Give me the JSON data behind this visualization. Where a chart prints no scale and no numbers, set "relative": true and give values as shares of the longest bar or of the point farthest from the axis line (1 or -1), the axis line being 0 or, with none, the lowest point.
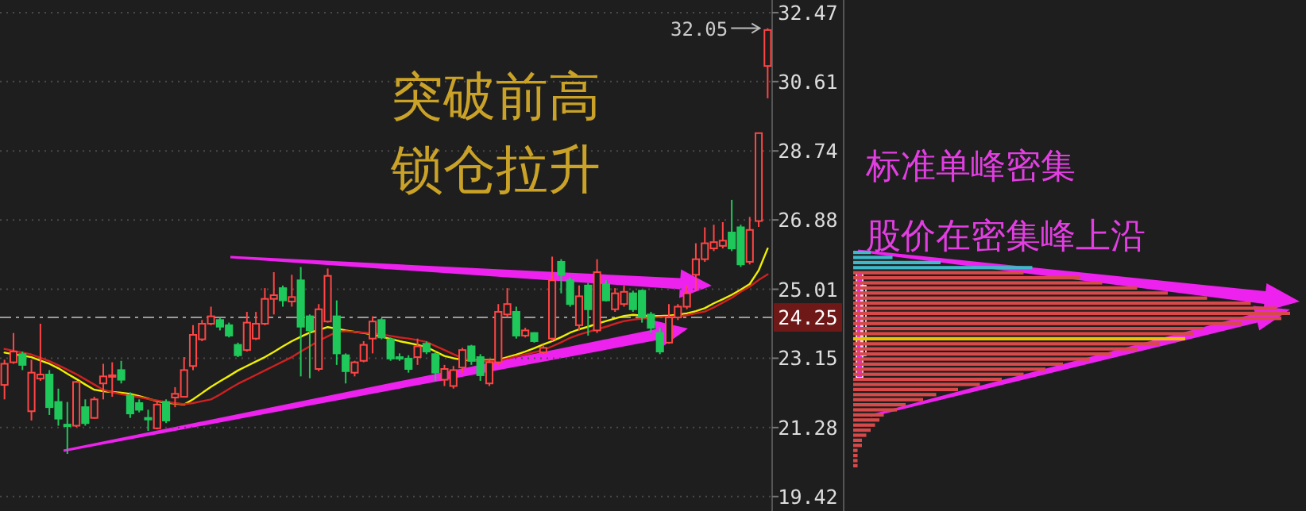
{
  "chart_data": [
    {
      "type": "candlestick",
      "categories": [
        null,
        null,
        null,
        null,
        null,
        null,
        null,
        null,
        null,
        null,
        null,
        null,
        null,
        null,
        null,
        null,
        null,
        null,
        null,
        null,
        null,
        null,
        null,
        null,
        null,
        null,
        null,
        null,
        null,
        null,
        null,
        null,
        null,
        null,
        null,
        null,
        null,
        null,
        null,
        null,
        null,
        null,
        null,
        null,
        null,
        null,
        null,
        null,
        null,
        null,
        null,
        null,
        null,
        null,
        null,
        null,
        null,
        null,
        null,
        null,
        null,
        null,
        null,
        null,
        null,
        null,
        null,
        null,
        null,
        null,
        null,
        null,
        null,
        null,
        null,
        null,
        null,
        null,
        null,
        null,
        null,
        null,
        null,
        null,
        null,
        null
      ],
      "ohlc": [
        [
          22.43,
          23.11,
          22.04,
          23.0
        ],
        [
          23.04,
          23.83,
          23.0,
          23.33
        ],
        [
          23.26,
          23.33,
          22.83,
          22.97
        ],
        [
          21.72,
          23.11,
          21.47,
          22.76
        ],
        [
          22.6,
          24.08,
          22.54,
          22.71
        ],
        [
          22.71,
          22.83,
          21.62,
          21.83
        ],
        [
          21.97,
          22.33,
          21.33,
          21.52
        ],
        [
          21.36,
          21.97,
          20.57,
          21.32
        ],
        [
          21.33,
          22.54,
          21.29,
          22.51
        ],
        [
          21.83,
          22.04,
          21.33,
          21.4
        ],
        [
          21.54,
          22.11,
          21.52,
          22.04
        ],
        [
          22.47,
          23.0,
          22.04,
          22.66
        ],
        [
          22.66,
          23.04,
          22.11,
          22.69
        ],
        [
          22.83,
          23.08,
          22.47,
          22.57
        ],
        [
          22.14,
          22.23,
          21.54,
          21.66
        ],
        [
          21.94,
          22.04,
          21.69,
          21.76
        ],
        [
          21.54,
          21.76,
          21.19,
          21.52
        ],
        [
          21.26,
          22.0,
          21.23,
          21.9
        ],
        [
          21.97,
          22.04,
          21.4,
          21.47
        ],
        [
          22.09,
          22.37,
          21.83,
          22.19
        ],
        [
          22.11,
          23.18,
          22.09,
          22.83
        ],
        [
          22.94,
          24.04,
          22.83,
          23.78
        ],
        [
          23.66,
          24.18,
          23.61,
          24.08
        ],
        [
          24.08,
          24.54,
          24.04,
          24.28
        ],
        [
          24.18,
          24.25,
          23.9,
          24.0
        ],
        [
          24.04,
          24.11,
          23.71,
          23.76
        ],
        [
          23.51,
          23.57,
          23.18,
          23.23
        ],
        [
          23.37,
          24.4,
          23.33,
          24.11
        ],
        [
          23.68,
          24.4,
          23.64,
          24.08
        ],
        [
          24.08,
          25.04,
          24.04,
          24.75
        ],
        [
          24.75,
          25.47,
          24.33,
          24.85
        ],
        [
          25.04,
          25.11,
          24.54,
          24.71
        ],
        [
          24.68,
          25.4,
          24.54,
          24.8
        ],
        [
          25.25,
          25.61,
          22.66,
          24.0
        ],
        [
          24.28,
          24.33,
          22.61,
          23.9
        ],
        [
          22.86,
          24.61,
          22.8,
          24.47
        ],
        [
          24.14,
          25.57,
          24.11,
          25.37
        ],
        [
          24.28,
          24.71,
          22.97,
          23.28
        ],
        [
          23.23,
          23.28,
          22.47,
          22.8
        ],
        [
          22.76,
          23.08,
          22.66,
          23.04
        ],
        [
          23.08,
          23.61,
          23.04,
          23.51
        ],
        [
          23.68,
          24.28,
          23.28,
          24.14
        ],
        [
          24.18,
          24.23,
          23.66,
          23.71
        ],
        [
          23.66,
          23.71,
          23.08,
          23.14
        ],
        [
          23.18,
          23.28,
          23.08,
          23.14
        ],
        [
          23.14,
          23.23,
          22.76,
          22.86
        ],
        [
          23.18,
          23.68,
          22.97,
          23.47
        ],
        [
          23.54,
          23.6,
          23.26,
          23.33
        ],
        [
          23.26,
          23.33,
          22.54,
          22.76
        ],
        [
          22.57,
          22.97,
          22.4,
          22.86
        ],
        [
          22.4,
          22.94,
          22.33,
          22.83
        ],
        [
          22.9,
          23.43,
          22.76,
          23.37
        ],
        [
          23.47,
          23.51,
          22.97,
          23.08
        ],
        [
          23.18,
          23.26,
          22.54,
          22.69
        ],
        [
          22.47,
          23.14,
          22.4,
          23.04
        ],
        [
          23.04,
          24.61,
          22.97,
          24.4
        ],
        [
          24.33,
          25.04,
          24.25,
          24.61
        ],
        [
          24.4,
          24.54,
          23.68,
          23.76
        ],
        [
          23.76,
          23.97,
          23.71,
          23.9
        ],
        [
          23.83,
          23.85,
          23.57,
          23.61
        ],
        [
          23.31,
          23.51,
          23.26,
          23.43
        ],
        [
          23.68,
          25.89,
          23.61,
          25.25
        ],
        [
          25.75,
          25.82,
          24.9,
          25.4
        ],
        [
          25.25,
          25.32,
          24.54,
          24.61
        ],
        [
          24.04,
          25.11,
          23.9,
          24.82
        ],
        [
          25.11,
          25.18,
          23.76,
          24.47
        ],
        [
          23.9,
          25.82,
          23.83,
          25.47
        ],
        [
          25.14,
          25.25,
          24.68,
          24.71
        ],
        [
          24.47,
          25.04,
          24.4,
          24.9
        ],
        [
          24.61,
          25.11,
          24.54,
          24.94
        ],
        [
          24.9,
          24.97,
          24.4,
          24.47
        ],
        [
          24.97,
          25.0,
          24.11,
          24.25
        ],
        [
          24.33,
          24.4,
          23.83,
          23.97
        ],
        [
          23.83,
          23.97,
          23.26,
          23.33
        ],
        [
          23.57,
          24.61,
          23.54,
          24.25
        ],
        [
          24.25,
          24.61,
          24.18,
          24.54
        ],
        [
          24.54,
          25.11,
          24.47,
          24.9
        ],
        [
          25.4,
          26.25,
          24.97,
          25.82
        ],
        [
          25.82,
          26.68,
          25.75,
          26.25
        ],
        [
          26.11,
          26.75,
          26.04,
          26.28
        ],
        [
          26.18,
          26.82,
          26.11,
          26.32
        ],
        [
          26.54,
          27.42,
          26.04,
          26.11
        ],
        [
          26.68,
          26.75,
          25.61,
          25.68
        ],
        [
          25.75,
          26.96,
          25.68,
          26.61
        ],
        [
          26.85,
          29.22,
          26.69,
          29.22
        ],
        [
          31.03,
          32.05,
          30.16,
          32.0
        ]
      ],
      "series": [
        {
          "type": "line",
          "color": "#f0f000",
          "values": [
            23.3,
            23.26,
            23.22,
            23.18,
            23.09,
            23.0,
            22.88,
            22.73,
            22.59,
            22.44,
            22.3,
            22.26,
            22.24,
            22.22,
            22.19,
            22.13,
            22.06,
            21.99,
            21.95,
            21.93,
            21.9,
            22.04,
            22.21,
            22.38,
            22.53,
            22.67,
            22.82,
            22.94,
            23.06,
            23.18,
            23.32,
            23.47,
            23.61,
            23.73,
            23.84,
            23.91,
            23.99,
            23.95,
            23.9,
            23.86,
            23.83,
            23.79,
            23.73,
            23.67,
            23.61,
            23.56,
            23.51,
            23.45,
            23.33,
            23.21,
            23.15,
            23.11,
            23.09,
            23.1,
            23.1,
            23.11,
            23.18,
            23.25,
            23.33,
            23.42,
            23.52,
            23.61,
            23.72,
            23.84,
            23.93,
            24.0,
            24.08,
            24.15,
            24.22,
            24.29,
            24.32,
            24.3,
            24.29,
            24.29,
            24.3,
            24.32,
            24.36,
            24.42,
            24.5,
            24.63,
            24.74,
            24.86,
            25.0,
            25.15,
            25.52,
            26.11
          ]
        },
        {
          "type": "line",
          "color": "#d02020",
          "values": [
            23.4,
            23.35,
            23.3,
            23.25,
            23.16,
            23.07,
            22.96,
            22.84,
            22.72,
            22.58,
            22.44,
            22.3,
            22.23,
            22.18,
            22.14,
            22.1,
            22.05,
            22.01,
            21.97,
            21.94,
            21.91,
            21.94,
            21.99,
            22.04,
            22.17,
            22.32,
            22.46,
            22.58,
            22.7,
            22.82,
            22.94,
            23.06,
            23.18,
            23.33,
            23.47,
            23.62,
            23.74,
            23.86,
            23.88,
            23.86,
            23.84,
            23.82,
            23.79,
            23.75,
            23.71,
            23.68,
            23.64,
            23.59,
            23.48,
            23.37,
            23.26,
            23.15,
            23.08,
            23.08,
            23.08,
            23.08,
            23.14,
            23.2,
            23.25,
            23.31,
            23.37,
            23.47,
            23.58,
            23.7,
            23.79,
            23.86,
            23.93,
            24.0,
            24.08,
            24.15,
            24.19,
            24.22,
            24.24,
            24.26,
            24.27,
            24.28,
            24.31,
            24.36,
            24.41,
            24.52,
            24.65,
            24.78,
            24.94,
            25.08,
            25.26,
            25.41
          ]
        }
      ],
      "ylim": [
        19.03,
        32.81
      ],
      "yticks": [
        32.47,
        30.61,
        28.74,
        26.88,
        25.01,
        23.15,
        21.28,
        19.42
      ],
      "grid": "y",
      "tick_labels": "y",
      "ref_lines": [
        {
          "axis": "y",
          "value": 24.25,
          "label": "24.25",
          "color": "#9a9a9a",
          "line_style": "dashed"
        }
      ],
      "annotations": [
        "突破前高",
        "锁仓拉升",
        "32.05"
      ]
    },
    {
      "type": "bar",
      "orientation": "horizontal",
      "relative": true,
      "tick_labels": false,
      "categories": [
        null,
        null,
        null,
        null,
        null,
        null,
        null,
        null,
        null,
        null,
        null,
        null,
        null,
        null,
        null,
        null,
        null,
        null,
        null,
        null,
        null,
        null,
        null,
        null,
        null,
        null,
        null,
        null,
        null,
        null,
        null,
        null,
        null,
        null,
        null,
        null,
        null,
        null,
        null,
        null,
        null,
        null,
        null
      ],
      "values": [
        0.04,
        0.09,
        0.2,
        0.41,
        0.39,
        0.52,
        0.57,
        0.65,
        0.72,
        0.81,
        0.91,
        0.97,
        1,
        0.98,
        0.89,
        0.8,
        0.78,
        0.76,
        0.7,
        0.65,
        0.59,
        0.54,
        0.48,
        0.44,
        0.39,
        0.34,
        0.29,
        0.24,
        0.19,
        0.16,
        0.12,
        0.1,
        0.07,
        0.06,
        0.05,
        0.04,
        0.03,
        0.02,
        0.02,
        0.01,
        0.01,
        0.01,
        0.01
      ],
      "colors": [
        "#3fb8c8",
        "#3fb8c8",
        "#3fb8c8",
        "#3fb8c8",
        "#d84a4a",
        "#d84a4a",
        "#d84a4a",
        "#d84a4a",
        "#d84a4a",
        "#d84a4a",
        "#d84a4a",
        "#d84a4a",
        "#d84a4a",
        "#d84a4a",
        "#d84a4a",
        "#d84a4a",
        "#d84a4a",
        "#f0c000",
        "#d84a4a",
        "#d84a4a",
        "#d84a4a",
        "#d84a4a",
        "#d84a4a",
        "#d84a4a",
        "#d84a4a",
        "#d84a4a",
        "#d84a4a",
        "#d84a4a",
        "#d84a4a",
        "#d84a4a",
        "#d84a4a",
        "#d84a4a",
        "#d84a4a",
        "#d84a4a",
        "#d84a4a",
        "#d84a4a",
        "#d84a4a",
        "#d84a4a",
        "#d84a4a",
        "#d84a4a",
        "#d84a4a",
        "#d84a4a",
        "#d84a4a"
      ],
      "annotations": [
        "标准单峰密集",
        "股价在密集峰上沿"
      ]
    }
  ]
}
